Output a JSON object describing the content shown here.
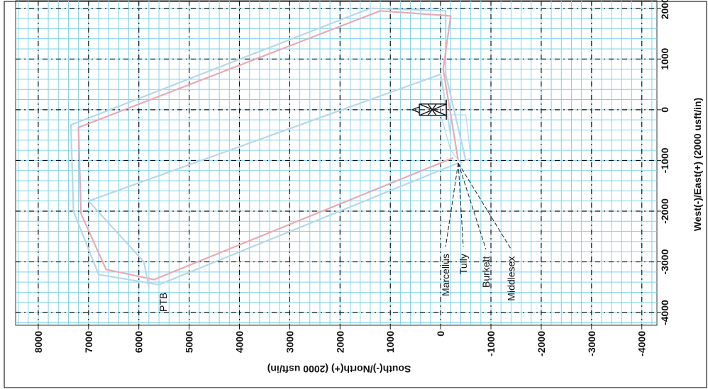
{
  "chart_data": {
    "type": "line",
    "title": "",
    "xlabel": "South(-)/North(+) (2000 usft/in)",
    "ylabel": "West(-)/East(+) (2000 usft/in)",
    "north_ticks": [
      "8000",
      "7000",
      "6000",
      "5000",
      "4000",
      "3000",
      "2000",
      "1000",
      "0",
      "-1000",
      "-2000",
      "-3000",
      "-4000"
    ],
    "east_ticks": [
      "2000",
      "1000",
      "0",
      "-1000",
      "-2000",
      "-3000",
      "-4000"
    ],
    "north_range": [
      8450,
      -4300
    ],
    "east_range": [
      2150,
      -4250
    ],
    "grid": true,
    "colors": {
      "grid": "#7fd3ea",
      "grid_major": "#111111",
      "wellpath": "#b7d7ea",
      "wellpath_accent": "#e9a9b5"
    },
    "icons": [
      "drilling-rig-icon"
    ],
    "formation_labels": [
      "Marcellus",
      "Tully",
      "Burkett",
      "Middlesex"
    ],
    "target_label": "PTB",
    "surface_location": {
      "north": 0,
      "east": 0
    },
    "formation_tops": [
      {
        "name": "Marcellus",
        "north": -100,
        "east": -2700
      },
      {
        "name": "Tully",
        "north": -450,
        "east": -2700
      },
      {
        "name": "Burkett",
        "north": -900,
        "east": -2750
      },
      {
        "name": "Middlesex",
        "north": -1400,
        "east": -2750
      }
    ],
    "series": [
      {
        "points": [
          [
            -500,
            -1000
          ],
          [
            -100,
            700
          ],
          [
            -100,
            1950
          ],
          [
            1400,
            2000
          ],
          [
            7350,
            -300
          ],
          [
            7300,
            -2000
          ],
          [
            6800,
            -3250
          ],
          [
            5600,
            -3450
          ],
          [
            -350,
            -1050
          ]
        ]
      },
      {
        "points": [
          [
            -350,
            -1000
          ],
          [
            -50,
            800
          ],
          [
            -200,
            1850
          ],
          [
            1200,
            1950
          ],
          [
            7200,
            -350
          ],
          [
            7150,
            -2050
          ],
          [
            6650,
            -3150
          ],
          [
            5700,
            -3350
          ],
          [
            -250,
            -950
          ]
        ]
      },
      {
        "points": [
          [
            -200,
            -500
          ],
          [
            0,
            700
          ],
          [
            7000,
            -1800
          ],
          [
            5900,
            -3000
          ],
          [
            5800,
            -3500
          ]
        ]
      },
      {
        "points": [
          [
            0,
            -100
          ],
          [
            -200,
            -800
          ],
          [
            -400,
            -1050
          ],
          [
            -600,
            -950
          ],
          [
            -500,
            -100
          ],
          [
            0,
            -100
          ]
        ]
      }
    ]
  }
}
